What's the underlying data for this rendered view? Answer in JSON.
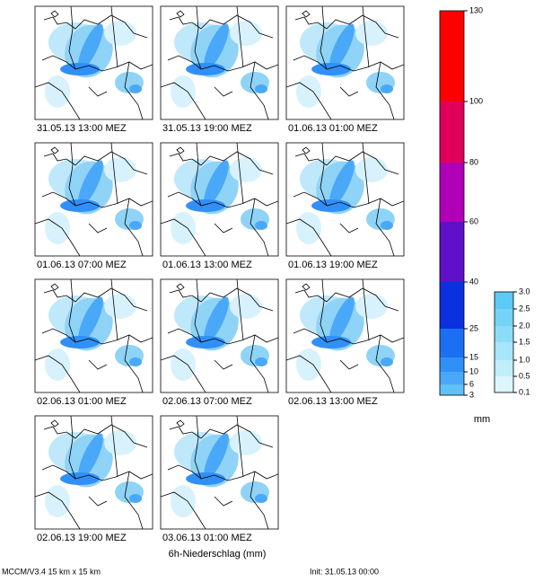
{
  "panels": [
    "31.05.13 13:00 MEZ",
    "31.05.13 19:00 MEZ",
    "01.06.13 01:00 MEZ",
    "01.06.13 07:00 MEZ",
    "01.06.13 13:00 MEZ",
    "01.06.13 19:00 MEZ",
    "02.06.13 01:00 MEZ",
    "02.06.13 07:00 MEZ",
    "02.06.13 13:00 MEZ",
    "02.06.13 19:00 MEZ",
    "03.06.13 01:00 MEZ"
  ],
  "colorbar": {
    "ticks": [
      "130",
      "100",
      "80",
      "60",
      "40",
      "25",
      "15",
      "10",
      "6",
      "3"
    ],
    "small_ticks": [
      "3.0",
      "2.5",
      "2.0",
      "1.5",
      "1.0",
      "0.5",
      "0.1"
    ],
    "unit": "mm"
  },
  "title": "6h-Niederschlag (mm)",
  "footer": {
    "model": "MCCM/V3.4 15 km x 15 km",
    "init": "Init: 31.05.13 00:00"
  }
}
